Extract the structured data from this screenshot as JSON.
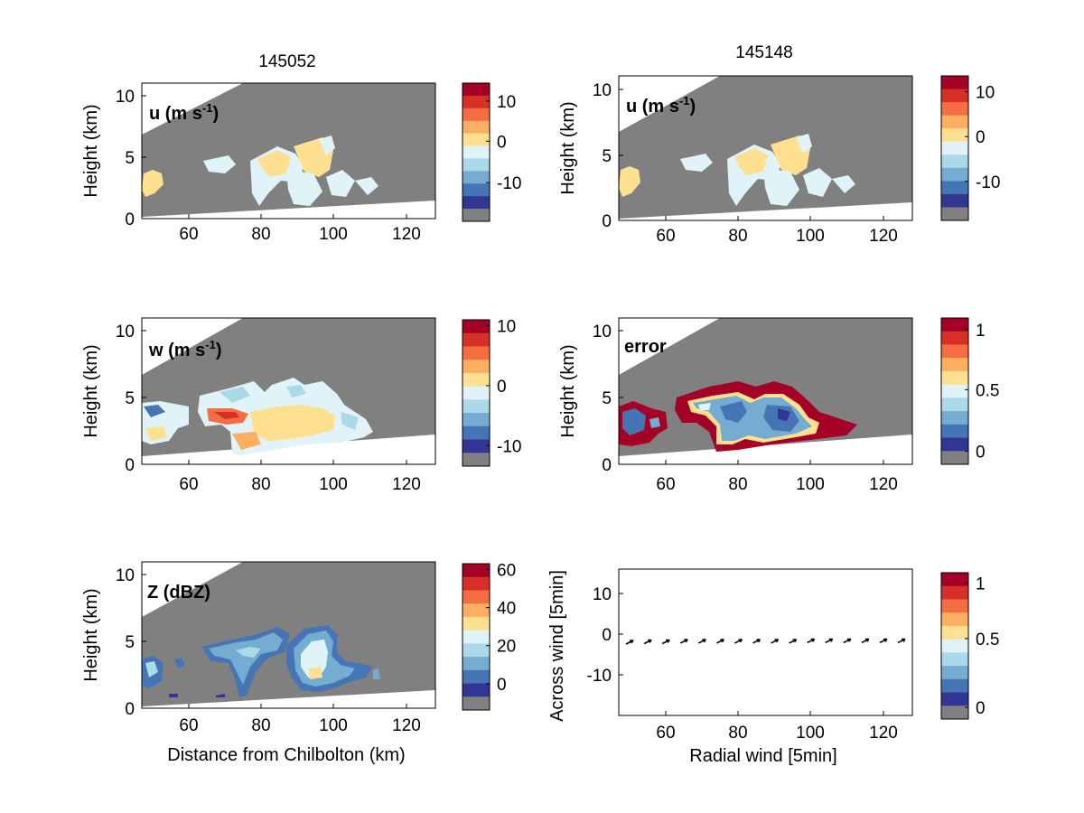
{
  "figure": {
    "col_titles": [
      "145052",
      "145148"
    ]
  },
  "colors": {
    "masked": "#808080",
    "background": "#ffffff",
    "echo_light_blue": "#deeef6",
    "echo_yellow": "#fde3a0",
    "colormap": [
      "#313695",
      "#4575b4",
      "#74add1",
      "#abd9e9",
      "#e0f3f8",
      "#fee090",
      "#fdae61",
      "#f46d43",
      "#d73027",
      "#a50026"
    ]
  },
  "chart_data": [
    {
      "type": "heatmap",
      "panel": "u-145052",
      "label": "u (m s-1)",
      "title": "145052",
      "xlabel": "",
      "ylabel": "Height (km)",
      "xlim": [
        47,
        128
      ],
      "ylim": [
        0,
        11
      ],
      "xticks": [
        "60",
        "80",
        "100",
        "120"
      ],
      "yticks": [
        "0",
        "5",
        "10"
      ],
      "colorbar": {
        "ticks": [
          "10",
          "0",
          "-10"
        ],
        "range": [
          -19,
          13
        ]
      }
    },
    {
      "type": "heatmap",
      "panel": "u-145148",
      "label": "u (m s-1)",
      "title": "145148",
      "xlabel": "",
      "ylabel": "Height (km)",
      "xlim": [
        47,
        128
      ],
      "ylim": [
        0,
        11
      ],
      "xticks": [
        "60",
        "80",
        "100",
        "120"
      ],
      "yticks": [
        "0",
        "5",
        "10"
      ],
      "colorbar": {
        "ticks": [
          "10",
          "0",
          "-10"
        ],
        "range": [
          -19,
          13
        ]
      }
    },
    {
      "type": "heatmap",
      "panel": "w-145052",
      "label": "w (m s-1)",
      "xlabel": "",
      "ylabel": "Height (km)",
      "xlim": [
        47,
        128
      ],
      "ylim": [
        0,
        11
      ],
      "xticks": [
        "60",
        "80",
        "100",
        "120"
      ],
      "yticks": [
        "0",
        "5",
        "10"
      ],
      "colorbar": {
        "ticks": [
          "10",
          "0",
          "-10"
        ],
        "range": [
          -13,
          10
        ]
      }
    },
    {
      "type": "heatmap",
      "panel": "error-145148",
      "label": "error",
      "xlabel": "",
      "ylabel": "Height (km)",
      "xlim": [
        47,
        128
      ],
      "ylim": [
        0,
        11
      ],
      "xticks": [
        "60",
        "80",
        "100",
        "120"
      ],
      "yticks": [
        "0",
        "5",
        "10"
      ],
      "colorbar": {
        "ticks": [
          "1",
          "0.5",
          "0"
        ],
        "range": [
          -0.1,
          1.1
        ]
      }
    },
    {
      "type": "heatmap",
      "panel": "z-145052",
      "label": "Z (dBZ)",
      "xlabel": "Distance from Chilbolton (km)",
      "ylabel": "Height (km)",
      "xlim": [
        47,
        128
      ],
      "ylim": [
        0,
        11
      ],
      "xticks": [
        "60",
        "80",
        "100",
        "120"
      ],
      "yticks": [
        "0",
        "5",
        "10"
      ],
      "colorbar": {
        "ticks": [
          "60",
          "40",
          "20",
          "0"
        ],
        "range": [
          -15,
          62
        ]
      }
    },
    {
      "type": "scatter",
      "panel": "wind-vectors",
      "xlabel": "Radial wind [5min]",
      "ylabel": "Across wind [5min]",
      "xlim": [
        47,
        128
      ],
      "ylim": [
        -16,
        15
      ],
      "xticks": [
        "60",
        "80",
        "100",
        "120"
      ],
      "yticks": [
        "10",
        "0",
        "-10"
      ],
      "x": [
        50,
        55,
        60,
        65,
        70,
        75,
        80,
        85,
        90,
        95,
        100,
        105,
        110,
        115,
        120,
        125
      ],
      "y": [
        -0.5,
        -0.4,
        -0.4,
        -0.3,
        -0.3,
        -0.3,
        -0.3,
        -0.3,
        -0.3,
        -0.3,
        -0.2,
        -0.2,
        -0.2,
        -0.2,
        -0.2,
        -0.2
      ],
      "colorbar": {
        "ticks": [
          "1",
          "0.5",
          "0"
        ],
        "range": [
          0,
          1
        ]
      }
    }
  ]
}
